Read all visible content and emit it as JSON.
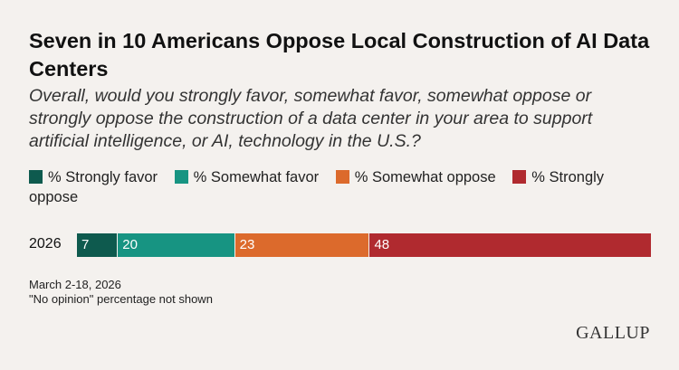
{
  "title": "Seven in 10 Americans Oppose Local Construction of AI Data Centers",
  "subtitle": "Overall, would you strongly favor, somewhat favor, somewhat oppose or strongly oppose the construction of a data center in your area to support artificial intelligence, or AI, technology in the U.S.?",
  "legend": [
    {
      "label": "% Strongly favor",
      "color": "#0e5a4e"
    },
    {
      "label": "% Somewhat favor",
      "color": "#179482"
    },
    {
      "label": "% Somewhat oppose",
      "color": "#dc6a2c"
    },
    {
      "label": "% Strongly oppose",
      "color": "#b02a2f"
    }
  ],
  "chart_data": {
    "type": "bar",
    "orientation": "horizontal",
    "stacked": true,
    "categories": [
      "2026"
    ],
    "series": [
      {
        "name": "% Strongly favor",
        "values": [
          7
        ],
        "color": "#0e5a4e"
      },
      {
        "name": "% Somewhat favor",
        "values": [
          20
        ],
        "color": "#179482"
      },
      {
        "name": "% Somewhat oppose",
        "values": [
          23
        ],
        "color": "#dc6a2c"
      },
      {
        "name": "% Strongly oppose",
        "values": [
          48
        ],
        "color": "#b02a2f"
      }
    ],
    "data_labels": true,
    "grid": false,
    "legend_position": "top"
  },
  "footnotes": {
    "date": "March 2-18, 2026",
    "note": "\"No opinion\" percentage not shown"
  },
  "logo": "GALLUP"
}
